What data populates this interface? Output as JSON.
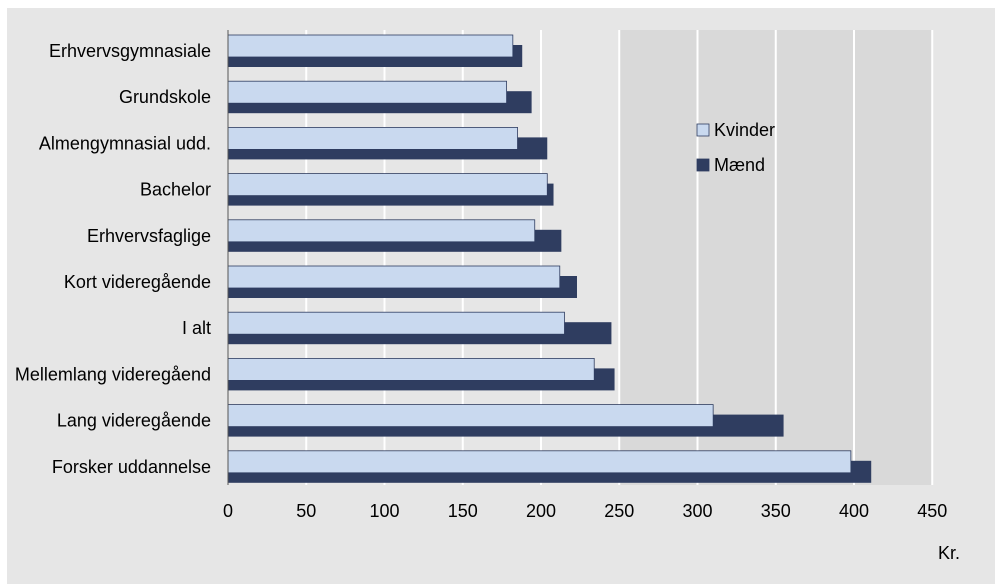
{
  "chart_data": {
    "type": "bar",
    "orientation": "horizontal",
    "categories": [
      "Erhvervsgymnasiale",
      "Grundskole",
      "Almengymnasial udd.",
      "Bachelor",
      "Erhvervsfaglige",
      "Kort videregående",
      "I alt",
      "Mellemlang videregåend",
      "Lang videregående",
      "Forsker uddannelse"
    ],
    "series": [
      {
        "name": "Kvinder",
        "color": "#c9d9ef",
        "values": [
          182,
          178,
          185,
          204,
          196,
          212,
          215,
          234,
          310,
          398
        ]
      },
      {
        "name": "Mænd",
        "color": "#2f3d60",
        "values": [
          188,
          194,
          204,
          208,
          213,
          223,
          245,
          247,
          355,
          411
        ]
      }
    ],
    "x_ticks": [
      "0",
      "50",
      "100",
      "150",
      "200",
      "250",
      "300",
      "350",
      "400",
      "450"
    ],
    "xlim": [
      0,
      450
    ],
    "xlabel": "Kr.",
    "grid": true,
    "legend_position": "inside-right"
  }
}
